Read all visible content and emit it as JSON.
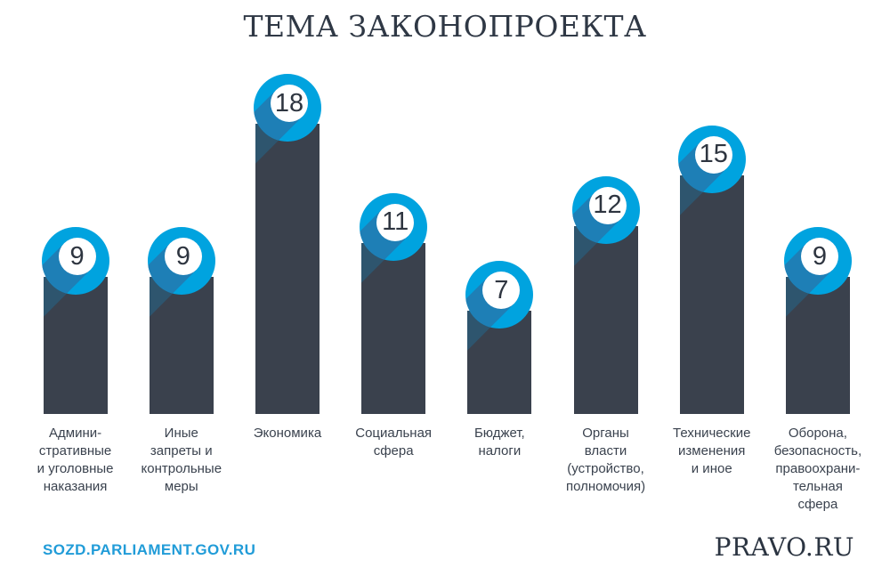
{
  "title": "ТЕМА ЗАКОНОПРОЕКТА",
  "chart_data": {
    "type": "bar",
    "title": "ТЕМА ЗАКОНОПРОЕКТА",
    "xlabel": "",
    "ylabel": "",
    "ylim": [
      0,
      20
    ],
    "grid": false,
    "legend": false,
    "bar_color": "#3A414D",
    "marker_color": "#00A3DF",
    "values": [
      9,
      9,
      18,
      11,
      7,
      12,
      15,
      9
    ],
    "categories": [
      "Административные и уголовные наказания",
      "Иные запреты и контрольные меры",
      "Экономика",
      "Социальная сфера",
      "Бюджет, налоги",
      "Органы власти (устройство, полномочия)",
      "Технические изменения и иное",
      "Оборона, безопасность, правоохранительная сфера"
    ],
    "categories_display": [
      "Админи-\nстративные\nи уголовные\nнаказания",
      "Иные\nзапреты и\nконтрольные\nмеры",
      "Экономика",
      "Социальная\nсфера",
      "Бюджет,\nналоги",
      "Органы\nвласти\n(устройство,\nполномочия)",
      "Технические\nизменения\nи иное",
      "Оборона,\nбезопасность,\nправоохрани-\nтельная\nсфера"
    ]
  },
  "footer": {
    "source_link": "SOZD.PARLIAMENT.GOV.RU",
    "brand": "PRAVO.RU"
  },
  "colors": {
    "background": "#FFFFFF",
    "bar": "#3A414D",
    "blue": "#00A3DF",
    "shadow": "#1E7FB6",
    "wedge": "rgba(21,131,188,0.30)",
    "num": "#2E3540",
    "title": "#2F3845",
    "label": "#3A424E",
    "link": "#219CD8",
    "pravo": "#2B3441"
  }
}
